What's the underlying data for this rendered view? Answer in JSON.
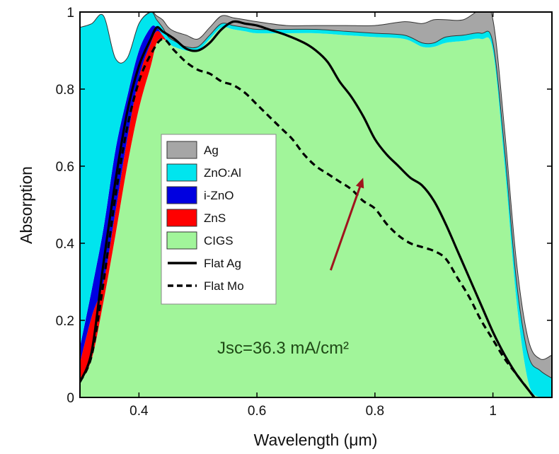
{
  "chart_data": {
    "type": "area",
    "xlabel": "Wavelength (μm)",
    "ylabel": "Absorption",
    "xlim": [
      0.3,
      1.1
    ],
    "ylim": [
      0,
      1
    ],
    "x_ticks": [
      0.4,
      0.6,
      0.8,
      1
    ],
    "x_tick_labels": [
      "0.4",
      "0.6",
      "0.8",
      "1"
    ],
    "y_ticks": [
      0,
      0.2,
      0.4,
      0.6,
      0.8,
      1
    ],
    "y_tick_labels": [
      "0",
      "0.2",
      "0.4",
      "0.6",
      "0.8",
      "1"
    ],
    "grid": false,
    "legend_position": "center-left",
    "colors": {
      "Ag": "#a6a6a6",
      "ZnO:Al": "#00e5ee",
      "i-ZnO": "#0000e0",
      "ZnS": "#ff0000",
      "CIGS": "#a1f59a"
    },
    "stacked_series": [
      {
        "name": "CIGS",
        "x": [
          0.3,
          0.32,
          0.34,
          0.36,
          0.38,
          0.4,
          0.42,
          0.43,
          0.44,
          0.45,
          0.46,
          0.48,
          0.5,
          0.52,
          0.54,
          0.56,
          0.58,
          0.6,
          0.65,
          0.7,
          0.75,
          0.8,
          0.85,
          0.88,
          0.9,
          0.92,
          0.95,
          0.98,
          1.0,
          1.02,
          1.04,
          1.06,
          1.08,
          1.1
        ],
        "values": [
          0.04,
          0.1,
          0.25,
          0.42,
          0.6,
          0.75,
          0.86,
          0.92,
          0.93,
          0.92,
          0.91,
          0.9,
          0.9,
          0.93,
          0.96,
          0.955,
          0.95,
          0.945,
          0.945,
          0.945,
          0.94,
          0.935,
          0.93,
          0.91,
          0.91,
          0.92,
          0.925,
          0.93,
          0.9,
          0.6,
          0.25,
          0.04,
          0,
          0
        ]
      },
      {
        "name": "ZnS",
        "x": [
          0.3,
          0.32,
          0.34,
          0.36,
          0.38,
          0.4,
          0.42,
          0.43,
          0.44,
          0.45,
          0.46,
          0.48,
          0.5,
          0.52,
          0.54,
          0.56,
          0.58,
          0.6,
          0.65,
          0.7,
          0.75,
          0.8,
          0.85,
          0.88,
          0.9,
          0.92,
          0.95,
          0.98,
          1.0,
          1.02,
          1.04,
          1.06,
          1.08,
          1.1
        ],
        "values": [
          0.05,
          0.11,
          0.05,
          0.06,
          0.07,
          0.08,
          0.06,
          0.03,
          0.01,
          0,
          0,
          0,
          0,
          0,
          0,
          0,
          0,
          0,
          0,
          0,
          0,
          0,
          0,
          0,
          0,
          0,
          0,
          0,
          0,
          0,
          0,
          0,
          0,
          0
        ]
      },
      {
        "name": "i-ZnO",
        "x": [
          0.3,
          0.32,
          0.34,
          0.36,
          0.38,
          0.4,
          0.42,
          0.43,
          0.44,
          0.45,
          0.46,
          0.48,
          0.5,
          0.52,
          0.54,
          0.56,
          0.58,
          0.6,
          0.65,
          0.7,
          0.75,
          0.8,
          0.85,
          0.88,
          0.9,
          0.92,
          0.95,
          0.98,
          1.0,
          1.02,
          1.04,
          1.06,
          1.08,
          1.1
        ],
        "values": [
          0.04,
          0.07,
          0.14,
          0.16,
          0.11,
          0.07,
          0.04,
          0.01,
          0,
          0,
          0,
          0,
          0,
          0,
          0,
          0,
          0,
          0,
          0,
          0,
          0,
          0,
          0,
          0,
          0,
          0,
          0,
          0,
          0,
          0,
          0,
          0,
          0,
          0
        ]
      },
      {
        "name": "ZnO:Al",
        "x": [
          0.3,
          0.32,
          0.34,
          0.36,
          0.38,
          0.4,
          0.42,
          0.43,
          0.44,
          0.45,
          0.46,
          0.48,
          0.5,
          0.52,
          0.54,
          0.56,
          0.58,
          0.6,
          0.65,
          0.7,
          0.75,
          0.8,
          0.85,
          0.88,
          0.9,
          0.92,
          0.95,
          0.98,
          1.0,
          1.02,
          1.04,
          1.06,
          1.08,
          1.1
        ],
        "values": [
          0.83,
          0.69,
          0.55,
          0.24,
          0.1,
          0.07,
          0.04,
          0.02,
          0.02,
          0.015,
          0.015,
          0.01,
          0.01,
          0.01,
          0.01,
          0.01,
          0.01,
          0.01,
          0.01,
          0.01,
          0.01,
          0.01,
          0.01,
          0.01,
          0.01,
          0.015,
          0.015,
          0.015,
          0.02,
          0.04,
          0.05,
          0.07,
          0.07,
          0.05
        ]
      },
      {
        "name": "Ag",
        "x": [
          0.3,
          0.32,
          0.34,
          0.36,
          0.38,
          0.4,
          0.42,
          0.43,
          0.44,
          0.45,
          0.46,
          0.48,
          0.5,
          0.52,
          0.54,
          0.56,
          0.58,
          0.6,
          0.65,
          0.7,
          0.75,
          0.8,
          0.85,
          0.88,
          0.9,
          0.92,
          0.95,
          0.98,
          1.0,
          1.02,
          1.04,
          1.06,
          1.08,
          1.1
        ],
        "values": [
          0,
          0,
          0,
          0,
          0,
          0,
          0,
          0.01,
          0.02,
          0.025,
          0.025,
          0.03,
          0.02,
          0.02,
          0.02,
          0.02,
          0.02,
          0.02,
          0.01,
          0.01,
          0.015,
          0.02,
          0.035,
          0.05,
          0.06,
          0.045,
          0.04,
          0.06,
          0.06,
          0.05,
          0.05,
          0.04,
          0.03,
          0.06
        ]
      }
    ],
    "line_series": [
      {
        "name": "Flat Ag",
        "style": "solid",
        "color": "#000000",
        "x": [
          0.3,
          0.32,
          0.34,
          0.36,
          0.38,
          0.4,
          0.42,
          0.43,
          0.44,
          0.46,
          0.48,
          0.5,
          0.52,
          0.54,
          0.56,
          0.58,
          0.6,
          0.62,
          0.65,
          0.68,
          0.7,
          0.72,
          0.74,
          0.76,
          0.78,
          0.8,
          0.82,
          0.84,
          0.86,
          0.88,
          0.9,
          0.92,
          0.94,
          0.96,
          0.98,
          1.0,
          1.02,
          1.04,
          1.06,
          1.07
        ],
        "values": [
          0.04,
          0.12,
          0.35,
          0.56,
          0.74,
          0.86,
          0.93,
          0.96,
          0.95,
          0.93,
          0.905,
          0.9,
          0.92,
          0.955,
          0.975,
          0.97,
          0.965,
          0.955,
          0.94,
          0.92,
          0.9,
          0.87,
          0.82,
          0.78,
          0.73,
          0.67,
          0.63,
          0.6,
          0.57,
          0.55,
          0.51,
          0.45,
          0.38,
          0.31,
          0.24,
          0.17,
          0.11,
          0.06,
          0.02,
          0
        ]
      },
      {
        "name": "Flat Mo",
        "style": "dashed",
        "color": "#000000",
        "x": [
          0.3,
          0.32,
          0.34,
          0.36,
          0.38,
          0.4,
          0.42,
          0.44,
          0.46,
          0.48,
          0.5,
          0.52,
          0.54,
          0.56,
          0.58,
          0.6,
          0.62,
          0.64,
          0.66,
          0.68,
          0.7,
          0.72,
          0.74,
          0.76,
          0.78,
          0.8,
          0.82,
          0.84,
          0.86,
          0.88,
          0.9,
          0.92,
          0.94,
          0.96,
          0.98,
          1.0,
          1.02,
          1.04,
          1.06,
          1.07
        ],
        "values": [
          0.04,
          0.11,
          0.3,
          0.52,
          0.7,
          0.82,
          0.89,
          0.93,
          0.9,
          0.87,
          0.85,
          0.84,
          0.82,
          0.81,
          0.79,
          0.76,
          0.73,
          0.7,
          0.67,
          0.63,
          0.6,
          0.58,
          0.56,
          0.54,
          0.51,
          0.49,
          0.45,
          0.42,
          0.4,
          0.39,
          0.38,
          0.36,
          0.31,
          0.26,
          0.2,
          0.15,
          0.1,
          0.06,
          0.02,
          0
        ]
      }
    ],
    "legend": [
      {
        "label": "Ag",
        "kind": "patch",
        "color": "#a6a6a6"
      },
      {
        "label": "ZnO:Al",
        "kind": "patch",
        "color": "#00e5ee"
      },
      {
        "label": "i-ZnO",
        "kind": "patch",
        "color": "#0000e0"
      },
      {
        "label": "ZnS",
        "kind": "patch",
        "color": "#ff0000"
      },
      {
        "label": "CIGS",
        "kind": "patch",
        "color": "#a1f59a"
      },
      {
        "label": "Flat Ag",
        "kind": "line",
        "style": "solid"
      },
      {
        "label": "Flat Mo",
        "kind": "line",
        "style": "dashed"
      }
    ],
    "annotations": [
      {
        "text": "Jsc=36.3 mA/cm²"
      }
    ],
    "arrow": {
      "from": [
        0.725,
        0.33
      ],
      "to": [
        0.78,
        0.57
      ],
      "color": "#a0141e"
    }
  }
}
